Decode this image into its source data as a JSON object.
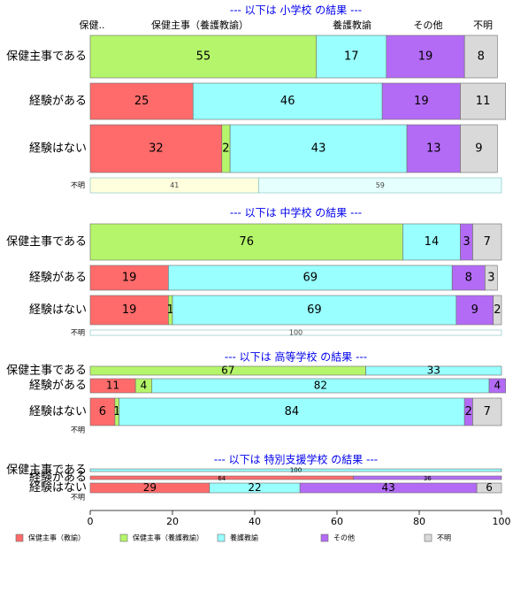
{
  "colors": {
    "hoken_kyoyu": "#FF6B6B",
    "hoken_yogo": "#B5F56B",
    "yogo": "#99FFFF",
    "sonota": "#B36BF5",
    "fumei": "#D9D9D9",
    "fumei_row_a": "#FFFFDD",
    "fumei_row_b": "#E5FFFF",
    "section_title": "#0000EE"
  },
  "column_headers": [
    "保健..",
    "保健主事（養護教諭）",
    "養護教諭",
    "その他",
    "不明"
  ],
  "x_axis": {
    "ticks": [
      "0",
      "20",
      "40",
      "60",
      "80",
      "100"
    ],
    "range": [
      0,
      100
    ]
  },
  "legend": [
    {
      "label": "保健主事（教諭）",
      "color_key": "hoken_kyoyu"
    },
    {
      "label": "保健主事（養護教諭）",
      "color_key": "hoken_yogo"
    },
    {
      "label": "養護教諭",
      "color_key": "yogo"
    },
    {
      "label": "その他",
      "color_key": "sonota"
    },
    {
      "label": "不明",
      "color_key": "fumei"
    }
  ],
  "chart_data": {
    "type": "bar",
    "orientation": "horizontal",
    "stacked": true,
    "xlim": [
      0,
      100
    ],
    "series": [
      "保健主事（教諭）",
      "保健主事（養護教諭）",
      "養護教諭",
      "その他",
      "不明"
    ],
    "sections": [
      {
        "title": "--- 以下は 小学校 の結果 ---",
        "rows": [
          {
            "label": "保健主事である",
            "values": [
              0,
              55,
              17,
              19,
              8
            ],
            "labels": [
              "",
              "55",
              "17",
              "19",
              "8"
            ]
          },
          {
            "label": "経験がある",
            "values": [
              25,
              0,
              46,
              19,
              11
            ],
            "labels": [
              "25",
              "",
              "46",
              "19",
              "11"
            ]
          },
          {
            "label": "経験はない",
            "values": [
              32,
              2,
              43,
              13,
              9
            ],
            "labels": [
              "32",
              "2",
              "43",
              "13",
              "9"
            ]
          },
          {
            "label": "不明",
            "fumei": true,
            "values": [
              41,
              59
            ],
            "labels": [
              "41",
              "59"
            ]
          }
        ]
      },
      {
        "title": "--- 以下は 中学校 の結果 ---",
        "rows": [
          {
            "label": "保健主事である",
            "values": [
              0,
              76,
              14,
              3,
              7
            ],
            "labels": [
              "",
              "76",
              "14",
              "3",
              "7"
            ]
          },
          {
            "label": "経験がある",
            "values": [
              19,
              0,
              69,
              8,
              3
            ],
            "labels": [
              "19",
              "",
              "69",
              "8",
              "3"
            ]
          },
          {
            "label": "経験はない",
            "values": [
              19,
              1,
              69,
              9,
              2
            ],
            "labels": [
              "19",
              "1",
              "69",
              "9",
              "2"
            ]
          },
          {
            "label": "不明",
            "fumei": true,
            "values": [
              100
            ],
            "labels": [
              "100"
            ]
          }
        ]
      },
      {
        "title": "--- 以下は 高等学校 の結果 ---",
        "rows": [
          {
            "label": "保健主事である",
            "values": [
              0,
              67,
              33,
              0,
              0
            ],
            "labels": [
              "",
              "67",
              "33",
              "",
              ""
            ]
          },
          {
            "label": "経験がある",
            "values": [
              11,
              4,
              82,
              4,
              0
            ],
            "labels": [
              "11",
              "4",
              "82",
              "4",
              ""
            ]
          },
          {
            "label": "経験はない",
            "values": [
              6,
              1,
              84,
              2,
              7
            ],
            "labels": [
              "6",
              "1",
              "84",
              "2",
              "7"
            ]
          },
          {
            "label": "不明",
            "fumei": true,
            "values": [],
            "labels": []
          }
        ]
      },
      {
        "title": "--- 以下は 特別支援学校 の結果 ---",
        "rows": [
          {
            "label": "保健主事である",
            "values": [
              0,
              0,
              100,
              0,
              0
            ],
            "labels": [
              "",
              "",
              "100",
              "",
              ""
            ]
          },
          {
            "label": "経験がある",
            "values": [
              64,
              0,
              0,
              36,
              0
            ],
            "labels": [
              "64",
              "",
              "",
              "36",
              ""
            ]
          },
          {
            "label": "経験はない",
            "values": [
              29,
              0,
              22,
              43,
              6
            ],
            "labels": [
              "29",
              "",
              "22",
              "43",
              "6"
            ]
          },
          {
            "label": "不明",
            "fumei": true,
            "values": [],
            "labels": []
          }
        ]
      }
    ]
  }
}
